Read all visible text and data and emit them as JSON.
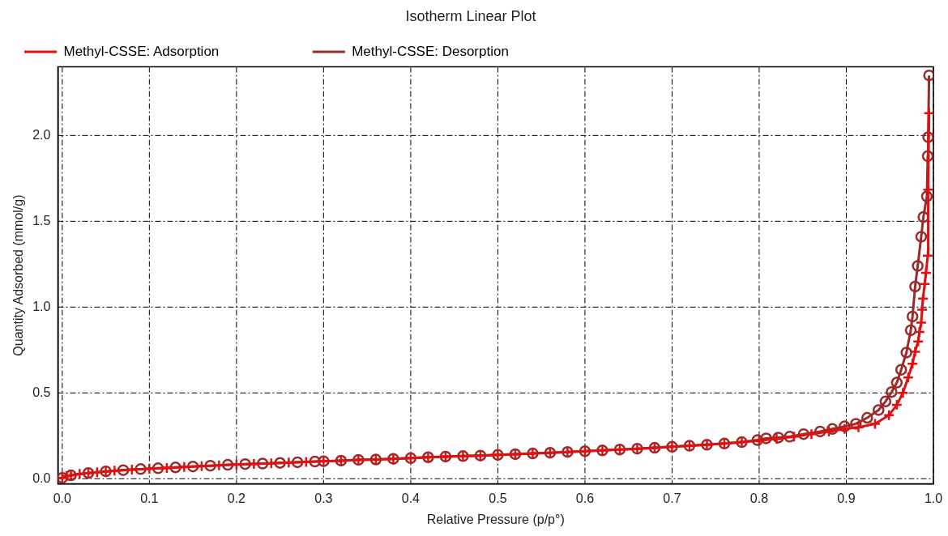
{
  "chart_data": {
    "type": "line",
    "title": "Isotherm Linear Plot",
    "xlabel": "Relative Pressure (p/p°)",
    "ylabel": "Quantity Adsorbed (mmol/g)",
    "xlim": [
      -0.005,
      1.0
    ],
    "ylim": [
      -0.03,
      2.4
    ],
    "xticks": [
      {
        "value": 0,
        "label": "0.0"
      },
      {
        "value": 0.1,
        "label": "0.1"
      },
      {
        "value": 0.2,
        "label": "0.2"
      },
      {
        "value": 0.3,
        "label": "0.3"
      },
      {
        "value": 0.4,
        "label": "0.4"
      },
      {
        "value": 0.5,
        "label": "0.5"
      },
      {
        "value": 0.6,
        "label": "0.6"
      },
      {
        "value": 0.7,
        "label": "0.7"
      },
      {
        "value": 0.8,
        "label": "0.8"
      },
      {
        "value": 0.9,
        "label": "0.9"
      },
      {
        "value": 1.0,
        "label": "1.0"
      }
    ],
    "yticks": [
      {
        "value": 0,
        "label": "0.0"
      },
      {
        "value": 0.5,
        "label": "0.5"
      },
      {
        "value": 1.0,
        "label": "1.0"
      },
      {
        "value": 1.5,
        "label": "1.5"
      },
      {
        "value": 2.0,
        "label": "2.0"
      }
    ],
    "grid": true,
    "legend": "top left",
    "line_style": "solid",
    "series": [
      {
        "name": "Methyl-CSSE: Adsorption",
        "color": "#e01010",
        "marker": "cross",
        "x": [
          0,
          0.005,
          0.01,
          0.02,
          0.03,
          0.04,
          0.05,
          0.06,
          0.08,
          0.1,
          0.12,
          0.14,
          0.16,
          0.18,
          0.2,
          0.22,
          0.24,
          0.26,
          0.28,
          0.3,
          0.32,
          0.34,
          0.36,
          0.38,
          0.4,
          0.42,
          0.44,
          0.46,
          0.48,
          0.5,
          0.52,
          0.54,
          0.56,
          0.58,
          0.6,
          0.62,
          0.64,
          0.66,
          0.68,
          0.7,
          0.72,
          0.74,
          0.76,
          0.78,
          0.8,
          0.82,
          0.84,
          0.86,
          0.88,
          0.898,
          0.914,
          0.933,
          0.949,
          0.958,
          0.965,
          0.971,
          0.976,
          0.979,
          0.9825,
          0.984,
          0.986,
          0.987,
          0.988,
          0.99,
          0.9915,
          0.9935,
          0.994,
          0.995
        ],
        "values": [
          0.005,
          0.015,
          0.02,
          0.028,
          0.033,
          0.038,
          0.043,
          0.047,
          0.053,
          0.058,
          0.063,
          0.068,
          0.073,
          0.078,
          0.083,
          0.086,
          0.09,
          0.094,
          0.098,
          0.102,
          0.105,
          0.11,
          0.112,
          0.116,
          0.12,
          0.125,
          0.129,
          0.132,
          0.135,
          0.139,
          0.143,
          0.147,
          0.151,
          0.156,
          0.16,
          0.165,
          0.17,
          0.175,
          0.18,
          0.186,
          0.192,
          0.198,
          0.205,
          0.213,
          0.222,
          0.232,
          0.245,
          0.26,
          0.275,
          0.29,
          0.3,
          0.32,
          0.37,
          0.43,
          0.5,
          0.59,
          0.67,
          0.74,
          0.8,
          0.855,
          0.91,
          0.985,
          1.05,
          1.135,
          1.2,
          1.3,
          1.685,
          2.13
        ]
      },
      {
        "name": "Methyl-CSSE: Desorption",
        "color": "#9b2a2a",
        "marker": "circle",
        "x": [
          0,
          0.01,
          0.03,
          0.05,
          0.07,
          0.09,
          0.11,
          0.13,
          0.15,
          0.17,
          0.19,
          0.21,
          0.23,
          0.25,
          0.27,
          0.29,
          0.3,
          0.32,
          0.34,
          0.36,
          0.38,
          0.4,
          0.42,
          0.44,
          0.46,
          0.48,
          0.5,
          0.52,
          0.54,
          0.56,
          0.58,
          0.6,
          0.62,
          0.64,
          0.66,
          0.68,
          0.7,
          0.72,
          0.74,
          0.76,
          0.78,
          0.798,
          0.808,
          0.822,
          0.835,
          0.851,
          0.87,
          0.884,
          0.898,
          0.911,
          0.924,
          0.937,
          0.945,
          0.952,
          0.958,
          0.963,
          0.969,
          0.974,
          0.976,
          0.979,
          0.982,
          0.986,
          0.9885,
          0.9925,
          0.9935,
          0.994,
          0.995
        ],
        "values": [
          0.005,
          0.02,
          0.033,
          0.043,
          0.05,
          0.056,
          0.061,
          0.066,
          0.071,
          0.076,
          0.081,
          0.085,
          0.088,
          0.092,
          0.096,
          0.1,
          0.102,
          0.105,
          0.11,
          0.112,
          0.116,
          0.12,
          0.125,
          0.129,
          0.132,
          0.135,
          0.139,
          0.143,
          0.147,
          0.151,
          0.156,
          0.16,
          0.165,
          0.17,
          0.175,
          0.18,
          0.186,
          0.192,
          0.198,
          0.205,
          0.213,
          0.225,
          0.235,
          0.24,
          0.245,
          0.26,
          0.275,
          0.29,
          0.305,
          0.32,
          0.355,
          0.4,
          0.45,
          0.505,
          0.56,
          0.635,
          0.735,
          0.865,
          0.945,
          1.12,
          1.24,
          1.41,
          1.525,
          1.645,
          1.88,
          1.99,
          2.35
        ]
      }
    ]
  }
}
